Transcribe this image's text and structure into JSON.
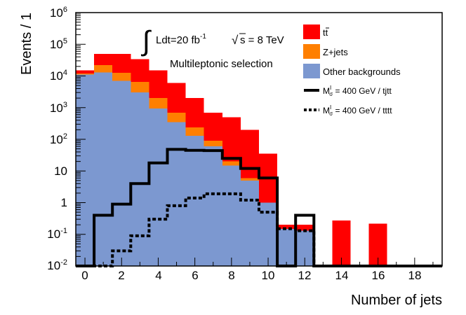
{
  "chart_data": {
    "type": "bar",
    "stacked": true,
    "log_y": true,
    "title": "",
    "xlabel": "Number of jets",
    "ylabel": "Events / 1",
    "xlim": [
      -0.5,
      19.5
    ],
    "ylim": [
      0.01,
      1000000
    ],
    "x": [
      0,
      1,
      2,
      3,
      4,
      5,
      6,
      7,
      8,
      9,
      10,
      11,
      12,
      13,
      14,
      15,
      16,
      17,
      18,
      19
    ],
    "x_ticks": [
      0,
      2,
      4,
      6,
      8,
      10,
      12,
      14,
      16,
      18
    ],
    "x_tick_labels": [
      "0",
      "2",
      "4",
      "6",
      "8",
      "10",
      "12",
      "14",
      "16",
      "18"
    ],
    "y_ticks": [
      0.01,
      0.1,
      1,
      10,
      100,
      1000,
      10000,
      100000,
      1000000
    ],
    "y_tick_labels": [
      {
        "base": "10",
        "exp": "-2"
      },
      {
        "base": "10",
        "exp": "-1"
      },
      {
        "base": "1",
        "exp": ""
      },
      {
        "base": "10",
        "exp": ""
      },
      {
        "base": "10",
        "exp": "2"
      },
      {
        "base": "10",
        "exp": "3"
      },
      {
        "base": "10",
        "exp": "4"
      },
      {
        "base": "10",
        "exp": "5"
      },
      {
        "base": "10",
        "exp": "6"
      }
    ],
    "stack_order_bottom_to_top": [
      "Other backgrounds",
      "Z+jets",
      "tt"
    ],
    "series": [
      {
        "name": "Other backgrounds",
        "style": "fill",
        "color": "#7c98d0",
        "values": [
          11000,
          13000,
          7000,
          3000,
          950,
          350,
          130,
          60,
          15,
          5,
          1,
          0.15,
          0.13,
          0,
          0,
          0,
          0,
          0,
          0,
          0
        ]
      },
      {
        "name": "Z+jets",
        "style": "fill",
        "color": "#ff7f00",
        "values": [
          1000,
          9000,
          5500,
          3500,
          1050,
          350,
          110,
          30,
          5,
          1,
          0,
          0,
          0,
          0,
          0,
          0,
          0,
          0,
          0,
          0
        ]
      },
      {
        "name": "tt",
        "style": "fill",
        "color": "#ff0000",
        "values": [
          3000,
          28000,
          37500,
          27500,
          13000,
          5300,
          1760,
          610,
          480,
          194,
          34,
          0.05,
          0.07,
          0,
          0.27,
          0,
          0.22,
          0,
          0,
          0
        ]
      },
      {
        "name": "M = 400 GeV / tjtt",
        "style": "line-solid",
        "color": "#000000",
        "values": [
          0.01,
          0.4,
          0.9,
          4,
          18,
          48,
          45,
          44,
          25,
          12,
          6,
          0.01,
          0.4,
          0.01,
          0.01,
          0.01,
          0.01,
          0.01,
          0.01,
          0.01
        ]
      },
      {
        "name": "M = 400 GeV / tttt",
        "style": "line-dashed",
        "color": "#000000",
        "values": [
          0.01,
          0.01,
          0.03,
          0.09,
          0.3,
          0.8,
          1.4,
          1.9,
          1.9,
          1.2,
          0.5,
          0.15,
          0.13,
          0.01,
          0.01,
          0.01,
          0.01,
          0.01,
          0.01,
          0.01
        ]
      }
    ],
    "legend": {
      "position": "top-right",
      "entries": [
        {
          "label": "t",
          "label_bar": "t",
          "swatch": "fill",
          "color": "#ff0000"
        },
        {
          "label": "Z+jets",
          "swatch": "fill",
          "color": "#ff7f00"
        },
        {
          "label": "Other backgrounds",
          "swatch": "fill",
          "color": "#7c98d0"
        },
        {
          "label_pre": "M",
          "sup": "I",
          "sub": "σ",
          "label_post": " = 400 GeV / tjtt",
          "swatch": "line-solid",
          "color": "#000000"
        },
        {
          "label_pre": "M",
          "sup": "I",
          "sub": "σ",
          "label_post": " = 400 GeV / tttt",
          "swatch": "line-dashed",
          "color": "#000000"
        }
      ]
    },
    "annotations": {
      "lumi": {
        "integral": "∫",
        "text": "Ldt=20 fb",
        "sup": "-1"
      },
      "energy": {
        "sqrt": "√",
        "text": "s = 8 TeV"
      },
      "selection": "Multileptonic selection"
    }
  }
}
